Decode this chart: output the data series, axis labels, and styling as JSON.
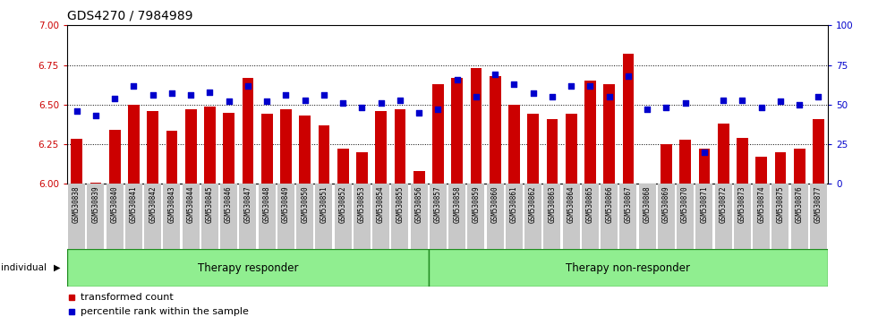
{
  "title": "GDS4270 / 7984989",
  "samples": [
    "GSM530838",
    "GSM530839",
    "GSM530840",
    "GSM530841",
    "GSM530842",
    "GSM530843",
    "GSM530844",
    "GSM530845",
    "GSM530846",
    "GSM530847",
    "GSM530848",
    "GSM530849",
    "GSM530850",
    "GSM530851",
    "GSM530852",
    "GSM530853",
    "GSM530854",
    "GSM530855",
    "GSM530856",
    "GSM530857",
    "GSM530858",
    "GSM530859",
    "GSM530860",
    "GSM530861",
    "GSM530862",
    "GSM530863",
    "GSM530864",
    "GSM530865",
    "GSM530866",
    "GSM530867",
    "GSM530868",
    "GSM530869",
    "GSM530870",
    "GSM530871",
    "GSM530872",
    "GSM530873",
    "GSM530874",
    "GSM530875",
    "GSM530876",
    "GSM530877"
  ],
  "bar_values": [
    6.285,
    6.005,
    6.34,
    6.5,
    6.46,
    6.335,
    6.47,
    6.49,
    6.45,
    6.67,
    6.44,
    6.47,
    6.43,
    6.37,
    6.22,
    6.2,
    6.46,
    6.47,
    6.08,
    6.63,
    6.67,
    6.73,
    6.68,
    6.5,
    6.44,
    6.41,
    6.44,
    6.65,
    6.63,
    6.82,
    6.003,
    6.25,
    6.28,
    6.22,
    6.38,
    6.29,
    6.17,
    6.2,
    6.22,
    6.41
  ],
  "percentile_values": [
    46,
    43,
    54,
    62,
    56,
    57,
    56,
    58,
    52,
    62,
    52,
    56,
    53,
    56,
    51,
    48,
    51,
    53,
    45,
    47,
    66,
    55,
    69,
    63,
    57,
    55,
    62,
    62,
    55,
    68,
    47,
    48,
    51,
    20,
    53,
    53,
    48,
    52,
    50,
    55
  ],
  "responder_count": 19,
  "group_labels": [
    "Therapy responder",
    "Therapy non-responder"
  ],
  "ylim_left": [
    6.0,
    7.0
  ],
  "ylim_right": [
    0,
    100
  ],
  "yticks_left": [
    6.0,
    6.25,
    6.5,
    6.75,
    7.0
  ],
  "yticks_right": [
    0,
    25,
    50,
    75,
    100
  ],
  "bar_color": "#cc0000",
  "dot_color": "#0000cc",
  "bar_bottom": 6.0,
  "grid_color": "#000000",
  "bg_color": "#ffffff",
  "tick_label_color_left": "#cc0000",
  "tick_label_color_right": "#0000cc",
  "group_bg_color": "#90ee90",
  "group_border_color": "#228B22",
  "xticklabel_bg": "#c8c8c8",
  "legend_items": [
    "transformed count",
    "percentile rank within the sample"
  ],
  "legend_colors": [
    "#cc0000",
    "#0000cc"
  ],
  "individual_label": "individual"
}
